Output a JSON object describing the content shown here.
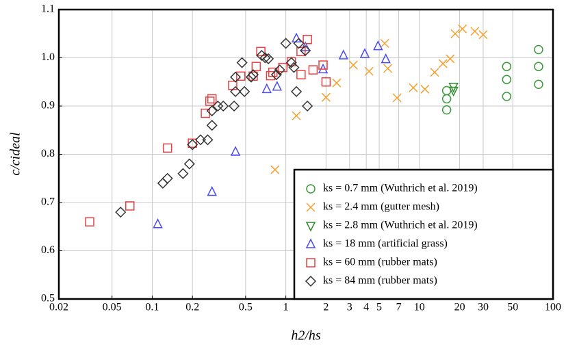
{
  "chart_data": {
    "type": "scatter",
    "xlabel": "h2/hs",
    "ylabel": "c/cideal",
    "xscale": "log",
    "grid": true,
    "legend_position": "lower right",
    "xlim": [
      0.02,
      100
    ],
    "ylim": [
      0.5,
      1.1
    ],
    "xticks": [
      0.02,
      0.05,
      0.1,
      0.2,
      0.5,
      1,
      2,
      3,
      4,
      5,
      7,
      10,
      20,
      30,
      50,
      100
    ],
    "yticks": [
      0.5,
      0.6,
      0.7,
      0.8,
      0.9,
      {
        "value": 1,
        "label": "1.0"
      },
      1.1
    ],
    "series": [
      {
        "name": "ks = 0.7 mm (Wuthrich et al. 2019)",
        "color": "#3a9a3a",
        "marker": "circle",
        "x": [
          16,
          16,
          16,
          45,
          45,
          45,
          78,
          78,
          78
        ],
        "values": [
          0.892,
          0.915,
          0.932,
          0.92,
          0.955,
          0.982,
          0.945,
          0.982,
          1.017
        ]
      },
      {
        "name": "ks = 2.4 mm (gutter mesh)",
        "color": "#f5a030",
        "marker": "x",
        "x": [
          0.83,
          1.2,
          2.0,
          2.4,
          3.2,
          4.2,
          5.5,
          5.8,
          6.8,
          9,
          11,
          13,
          15,
          17,
          18.5,
          21,
          26,
          30
        ],
        "values": [
          0.768,
          0.88,
          0.918,
          0.948,
          0.985,
          0.972,
          1.03,
          0.978,
          0.917,
          0.938,
          0.935,
          0.97,
          0.988,
          0.998,
          1.05,
          1.06,
          1.055,
          1.048
        ]
      },
      {
        "name": "ks = 2.8 mm (Wuthrich et al. 2019)",
        "color": "#2a8a2a",
        "marker": "triangle-down",
        "x": [
          18,
          18
        ],
        "values": [
          0.94,
          0.932
        ]
      },
      {
        "name": "ks = 18 mm (artificial grass)",
        "color": "#4b4bf0",
        "marker": "triangle-up",
        "x": [
          0.11,
          0.28,
          0.42,
          0.72,
          0.86,
          1.2,
          1.4,
          1.9,
          2.7,
          3.9,
          4.9,
          5.6
        ],
        "values": [
          0.655,
          0.722,
          0.805,
          0.935,
          0.94,
          1.04,
          1.022,
          0.976,
          1.005,
          1.008,
          1.024,
          0.997
        ]
      },
      {
        "name": "ks = 60 mm (rubber mats)",
        "color": "#e84040",
        "marker": "square",
        "x": [
          0.034,
          0.068,
          0.13,
          0.2,
          0.25,
          0.27,
          0.28,
          0.4,
          0.46,
          0.57,
          0.6,
          0.65,
          0.77,
          0.8,
          0.95,
          1.1,
          1.3,
          1.45,
          1.6,
          1.9,
          2.0,
          1.3
        ],
        "values": [
          0.66,
          0.693,
          0.813,
          0.823,
          0.885,
          0.91,
          0.915,
          0.943,
          0.962,
          0.962,
          0.982,
          1.013,
          0.963,
          0.97,
          0.98,
          0.992,
          1.013,
          1.038,
          0.975,
          0.985,
          0.95,
          0.965
        ]
      },
      {
        "name": "ks = 84 mm (rubber mats)",
        "color": "#333333",
        "marker": "diamond",
        "x": [
          0.058,
          0.12,
          0.13,
          0.17,
          0.19,
          0.2,
          0.23,
          0.26,
          0.28,
          0.28,
          0.31,
          0.34,
          0.41,
          0.42,
          0.42,
          0.47,
          0.49,
          0.55,
          0.57,
          0.66,
          0.7,
          0.74,
          0.85,
          0.9,
          1.0,
          1.1,
          1.15,
          1.2,
          1.25,
          1.45,
          1.4
        ],
        "values": [
          0.68,
          0.74,
          0.75,
          0.76,
          0.78,
          0.82,
          0.83,
          0.83,
          0.86,
          0.89,
          0.9,
          0.9,
          0.9,
          0.93,
          0.96,
          0.99,
          0.93,
          0.96,
          0.965,
          1.005,
          1.0,
          0.998,
          0.965,
          0.975,
          1.03,
          0.99,
          0.98,
          0.93,
          1.03,
          0.9,
          1.015
        ]
      }
    ]
  }
}
